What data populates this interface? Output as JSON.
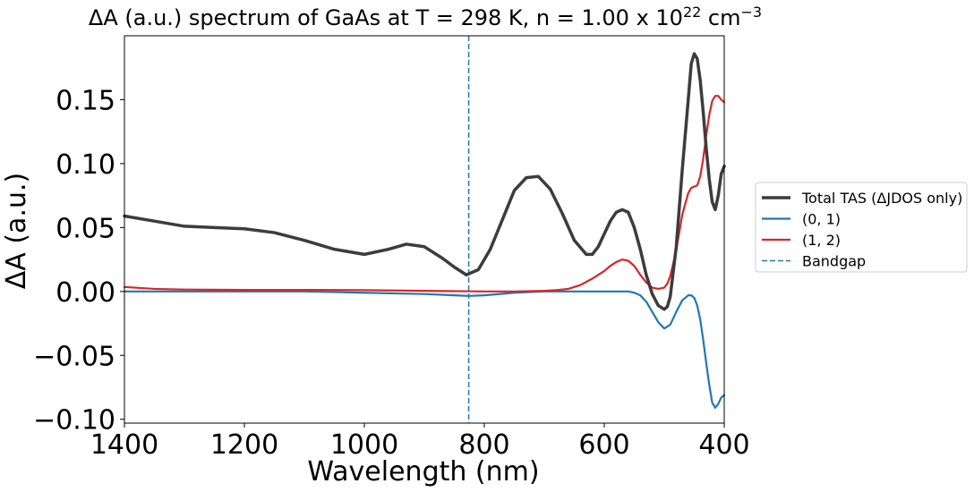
{
  "chart_data": {
    "type": "line",
    "title": {
      "main": "ΔA (a.u.) spectrum of GaAs at T = 298 K, n = 1.00 x 10",
      "exp1": "22",
      "mid": " cm",
      "exp2": "−3"
    },
    "xlabel": "Wavelength (nm)",
    "ylabel": "ΔA (a.u.)",
    "xlim": [
      1400,
      400
    ],
    "ylim": [
      -0.103,
      0.2
    ],
    "x_reversed": true,
    "xticks": [
      1400,
      1200,
      1000,
      800,
      600,
      400
    ],
    "xtick_labels": [
      "1400",
      "1200",
      "1000",
      "800",
      "600",
      "400"
    ],
    "yticks": [
      -0.1,
      -0.05,
      0.0,
      0.05,
      0.1,
      0.15
    ],
    "ytick_labels": [
      "−0.10",
      "−0.05",
      "0.00",
      "0.05",
      "0.10",
      "0.15"
    ],
    "grid": false,
    "legend_position": "outside-right",
    "bandgap_nm": 826,
    "series": [
      {
        "name": "Total TAS (ΔJDOS only)",
        "color": "#3c3c3c",
        "x": [
          1400,
          1350,
          1300,
          1250,
          1200,
          1150,
          1100,
          1050,
          1000,
          960,
          930,
          900,
          870,
          850,
          830,
          810,
          790,
          770,
          750,
          730,
          710,
          690,
          670,
          650,
          630,
          620,
          610,
          600,
          590,
          580,
          570,
          560,
          550,
          540,
          530,
          520,
          510,
          500,
          495,
          490,
          480,
          470,
          460,
          455,
          450,
          445,
          440,
          435,
          430,
          425,
          420,
          415,
          410,
          405,
          400
        ],
        "y": [
          0.059,
          0.055,
          0.051,
          0.05,
          0.049,
          0.046,
          0.04,
          0.033,
          0.029,
          0.033,
          0.037,
          0.035,
          0.026,
          0.019,
          0.013,
          0.017,
          0.033,
          0.056,
          0.079,
          0.089,
          0.09,
          0.08,
          0.061,
          0.04,
          0.029,
          0.029,
          0.035,
          0.045,
          0.055,
          0.062,
          0.064,
          0.062,
          0.05,
          0.033,
          0.013,
          -0.002,
          -0.011,
          -0.014,
          -0.012,
          -0.004,
          0.035,
          0.095,
          0.15,
          0.178,
          0.186,
          0.182,
          0.165,
          0.14,
          0.112,
          0.088,
          0.07,
          0.064,
          0.075,
          0.092,
          0.098
        ]
      },
      {
        "name": "(0, 1)",
        "color": "#1f77b4",
        "x": [
          1400,
          1300,
          1200,
          1100,
          1000,
          900,
          850,
          826,
          800,
          750,
          700,
          650,
          600,
          580,
          560,
          550,
          540,
          530,
          520,
          510,
          500,
          490,
          480,
          470,
          460,
          455,
          450,
          445,
          440,
          435,
          430,
          425,
          420,
          415,
          410,
          405,
          400
        ],
        "y": [
          0.0,
          0.0,
          0.0,
          0.0,
          -0.001,
          -0.002,
          -0.003,
          -0.0035,
          -0.003,
          -0.001,
          0.0,
          0.0,
          0.0,
          0.0,
          0.0,
          -0.001,
          -0.003,
          -0.008,
          -0.016,
          -0.024,
          -0.029,
          -0.026,
          -0.016,
          -0.007,
          -0.003,
          -0.003,
          -0.005,
          -0.011,
          -0.022,
          -0.038,
          -0.056,
          -0.073,
          -0.087,
          -0.091,
          -0.088,
          -0.083,
          -0.081
        ]
      },
      {
        "name": "(1, 2)",
        "color": "#d62728",
        "x": [
          1400,
          1350,
          1300,
          1200,
          1100,
          1000,
          900,
          800,
          750,
          700,
          680,
          660,
          640,
          620,
          600,
          590,
          580,
          570,
          560,
          550,
          540,
          530,
          520,
          510,
          500,
          495,
          490,
          480,
          470,
          460,
          455,
          450,
          445,
          440,
          435,
          430,
          425,
          420,
          415,
          410,
          405,
          400
        ],
        "y": [
          0.0035,
          0.002,
          0.0015,
          0.0012,
          0.0012,
          0.001,
          0.0005,
          0.0,
          0.0,
          0.0005,
          0.001,
          0.002,
          0.005,
          0.01,
          0.016,
          0.02,
          0.023,
          0.025,
          0.024,
          0.02,
          0.013,
          0.007,
          0.003,
          0.002,
          0.003,
          0.006,
          0.012,
          0.032,
          0.06,
          0.077,
          0.081,
          0.082,
          0.083,
          0.09,
          0.104,
          0.122,
          0.138,
          0.149,
          0.153,
          0.153,
          0.15,
          0.148
        ]
      }
    ],
    "legend": [
      {
        "label": "Total TAS (ΔJDOS only)",
        "color": "#3c3c3c",
        "style": "solid-thick"
      },
      {
        "label": "(0, 1)",
        "color": "#1f77b4",
        "style": "solid"
      },
      {
        "label": "(1, 2)",
        "color": "#d62728",
        "style": "solid"
      },
      {
        "label": "Bandgap",
        "color": "#1f77b4",
        "style": "dashed"
      }
    ]
  }
}
